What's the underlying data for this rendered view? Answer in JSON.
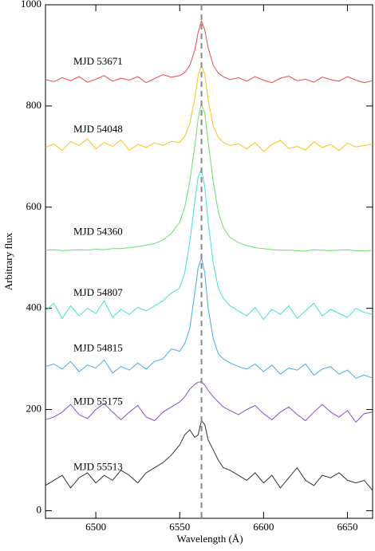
{
  "chart_data": {
    "type": "line",
    "x_label": "Wavelength (Å)",
    "y_label": "Arbitrary flux",
    "xlim": [
      6470,
      6665
    ],
    "ylim": [
      -15,
      1000
    ],
    "xticks": [
      6500,
      6550,
      6600,
      6650
    ],
    "yticks": [
      0,
      200,
      400,
      600,
      800,
      1000
    ],
    "reference_x": 6563,
    "x": [
      6470,
      6475,
      6480,
      6485,
      6490,
      6495,
      6500,
      6505,
      6510,
      6515,
      6520,
      6525,
      6530,
      6535,
      6540,
      6545,
      6550,
      6553,
      6556,
      6559,
      6561,
      6563,
      6565,
      6567,
      6570,
      6573,
      6576,
      6580,
      6585,
      6590,
      6595,
      6600,
      6605,
      6610,
      6615,
      6620,
      6625,
      6630,
      6635,
      6640,
      6645,
      6650,
      6655,
      6660,
      6665
    ],
    "series": [
      {
        "name": "MJD 53671",
        "color": "#e8474a",
        "values": [
          852,
          848,
          856,
          850,
          858,
          847,
          853,
          860,
          849,
          855,
          851,
          858,
          846,
          854,
          862,
          857,
          860,
          866,
          880,
          910,
          945,
          968,
          950,
          915,
          880,
          865,
          858,
          852,
          856,
          849,
          858,
          851,
          846,
          855,
          859,
          850,
          853,
          847,
          857,
          852,
          849,
          858,
          851,
          846,
          850
        ]
      },
      {
        "name": "MJD 54048",
        "color": "#f5c518",
        "values": [
          718,
          725,
          712,
          730,
          722,
          735,
          715,
          728,
          720,
          733,
          712,
          724,
          718,
          727,
          722,
          730,
          728,
          740,
          765,
          815,
          860,
          880,
          862,
          812,
          760,
          738,
          728,
          722,
          725,
          715,
          728,
          710,
          724,
          732,
          716,
          720,
          713,
          729,
          718,
          724,
          712,
          727,
          719,
          722,
          725
        ]
      },
      {
        "name": "MJD 54360",
        "color": "#6ede6e",
        "values": [
          515,
          516,
          514,
          515,
          516,
          515,
          517,
          516,
          518,
          518,
          520,
          522,
          525,
          528,
          535,
          548,
          570,
          600,
          650,
          720,
          775,
          805,
          785,
          730,
          650,
          590,
          560,
          540,
          530,
          524,
          520,
          518,
          516,
          515,
          515,
          514,
          513,
          516,
          515,
          514,
          515,
          516,
          514,
          513,
          515
        ]
      },
      {
        "name": "MJD 54807",
        "color": "#40e0d0",
        "values": [
          395,
          410,
          380,
          405,
          385,
          400,
          390,
          415,
          382,
          398,
          388,
          402,
          395,
          405,
          415,
          430,
          440,
          470,
          530,
          610,
          660,
          675,
          640,
          570,
          490,
          440,
          420,
          405,
          395,
          385,
          402,
          378,
          398,
          388,
          405,
          380,
          395,
          410,
          385,
          398,
          390,
          382,
          400,
          392,
          388
        ]
      },
      {
        "name": "MJD 54815",
        "color": "#4aa8e8",
        "values": [
          285,
          290,
          280,
          295,
          275,
          288,
          282,
          298,
          272,
          285,
          278,
          292,
          280,
          295,
          300,
          320,
          315,
          330,
          360,
          430,
          480,
          500,
          470,
          400,
          340,
          310,
          300,
          292,
          285,
          280,
          290,
          275,
          288,
          270,
          282,
          278,
          290,
          268,
          280,
          285,
          270,
          278,
          262,
          268,
          262
        ]
      },
      {
        "name": "MJD 55175",
        "color": "#8a4fc8",
        "values": [
          180,
          185,
          195,
          210,
          190,
          182,
          200,
          212,
          195,
          180,
          195,
          208,
          185,
          178,
          195,
          205,
          215,
          225,
          240,
          250,
          254,
          255,
          248,
          238,
          225,
          215,
          205,
          198,
          190,
          200,
          208,
          192,
          180,
          195,
          205,
          190,
          178,
          195,
          210,
          195,
          185,
          198,
          175,
          192,
          195
        ]
      },
      {
        "name": "MJD 55513",
        "color": "#333333",
        "values": [
          50,
          60,
          70,
          45,
          65,
          75,
          55,
          70,
          60,
          80,
          70,
          55,
          75,
          85,
          95,
          110,
          130,
          150,
          160,
          145,
          150,
          178,
          170,
          140,
          120,
          100,
          85,
          80,
          70,
          60,
          75,
          55,
          70,
          45,
          65,
          85,
          60,
          50,
          70,
          65,
          75,
          60,
          55,
          60,
          40
        ]
      }
    ]
  }
}
